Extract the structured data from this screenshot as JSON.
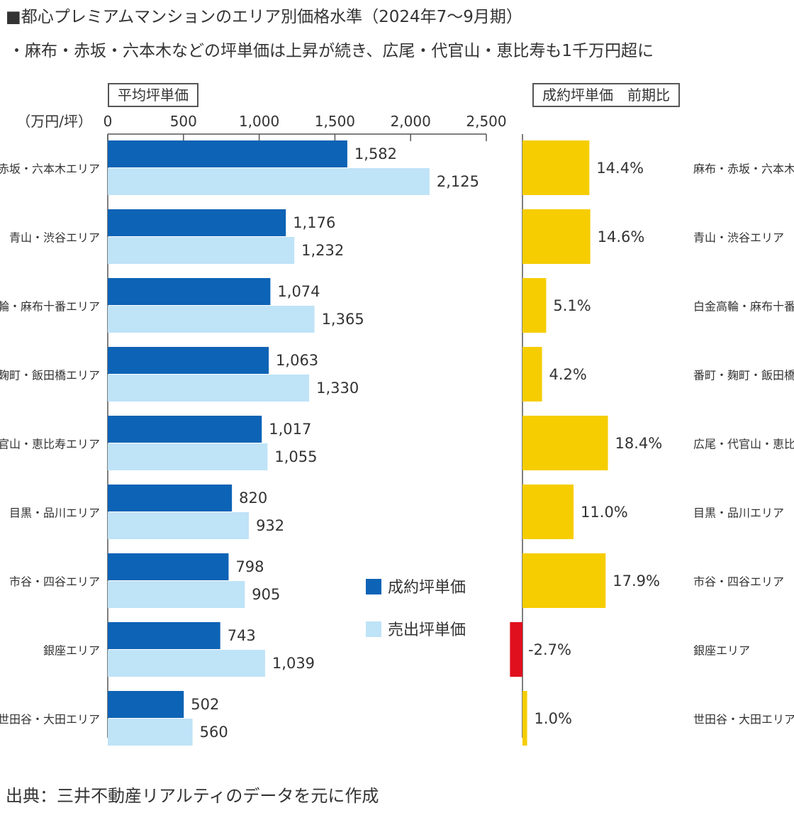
{
  "header": {
    "title": "■都心プレミアムマンションのエリア別価格水準（2024年7～9月期）",
    "subtitle": "・麻布・赤坂・六本木などの坪単価は上昇が続き、広尾・代官山・恵比寿も1千万円超に"
  },
  "chart_data": [
    {
      "type": "bar",
      "orientation": "horizontal",
      "title": "平均坪単価",
      "unit_label": "（万円/坪）",
      "xlim": [
        0,
        2500
      ],
      "tick_labels": [
        "0",
        "500",
        "1,000",
        "1,500",
        "2,000",
        "2,500"
      ],
      "categories": [
        "麻布・赤坂・六本木エリア",
        "青山・渋谷エリア",
        "白金高輪・麻布十番エリア",
        "番町・麹町・飯田橋エリア",
        "広尾・代官山・恵比寿エリア",
        "目黒・品川エリア",
        "市谷・四谷エリア",
        "銀座エリア",
        "世田谷・大田エリア"
      ],
      "series": [
        {
          "name": "成約坪単価",
          "color": "#0d63b5",
          "values": [
            1582,
            1176,
            1074,
            1063,
            1017,
            820,
            798,
            743,
            502
          ],
          "labels": [
            "1,582",
            "1,176",
            "1,074",
            "1,063",
            "1,017",
            "820",
            "798",
            "743",
            "502"
          ]
        },
        {
          "name": "売出坪単価",
          "color": "#bfe3f7",
          "values": [
            2125,
            1232,
            1365,
            1330,
            1055,
            932,
            905,
            1039,
            560
          ],
          "labels": [
            "2,125",
            "1,232",
            "1,365",
            "1,330",
            "1,055",
            "932",
            "905",
            "1,039",
            "560"
          ]
        }
      ]
    },
    {
      "type": "bar",
      "orientation": "horizontal",
      "title": "成約坪単価　前期比",
      "unit": "%",
      "categories": [
        "麻布・赤坂・六本木エリア",
        "青山・渋谷エリア",
        "白金高輪・麻布十番エリア",
        "番町・麹町・飯田橋エリア",
        "広尾・代官山・恵比寿エリア",
        "目黒・品川エリア",
        "市谷・四谷エリア",
        "銀座エリア",
        "世田谷・大田エリア"
      ],
      "values": [
        14.4,
        14.6,
        5.1,
        4.2,
        18.4,
        11.0,
        17.9,
        -2.7,
        1.0
      ],
      "labels": [
        "14.4%",
        "14.6%",
        "5.1%",
        "4.2%",
        "18.4%",
        "11.0%",
        "17.9%",
        "-2.7%",
        "1.0%"
      ],
      "positive_color": "#f6cd00",
      "negative_color": "#e0101e"
    }
  ],
  "footer": {
    "source": "出典：三井不動産リアルティのデータを元に作成"
  }
}
